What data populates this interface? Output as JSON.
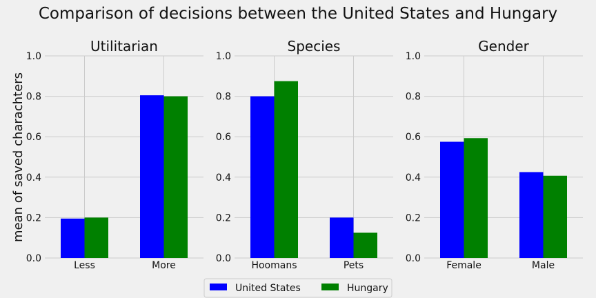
{
  "chart_data": {
    "type": "bar",
    "title": "Comparison of decisions between the United States and Hungary",
    "ylabel": "mean of saved charachters",
    "ylim": [
      0,
      1.0
    ],
    "yticks": [
      "0.0",
      "0.2",
      "0.4",
      "0.6",
      "0.8",
      "1.0"
    ],
    "grid": true,
    "legend_position": "bottom-center",
    "colors": {
      "United States": "#0000ff",
      "Hungary": "#008000",
      "background": "#f0f0f0",
      "grid": "#cbcbcb"
    },
    "legend": [
      "United States",
      "Hungary"
    ],
    "panels": [
      {
        "title": "Utilitarian",
        "categories": [
          "Less",
          "More"
        ],
        "series": [
          {
            "name": "United States",
            "values": [
              0.195,
              0.805
            ]
          },
          {
            "name": "Hungary",
            "values": [
              0.2,
              0.8
            ]
          }
        ]
      },
      {
        "title": "Species",
        "categories": [
          "Hoomans",
          "Pets"
        ],
        "series": [
          {
            "name": "United States",
            "values": [
              0.8,
              0.2
            ]
          },
          {
            "name": "Hungary",
            "values": [
              0.875,
              0.125
            ]
          }
        ]
      },
      {
        "title": "Gender",
        "categories": [
          "Female",
          "Male"
        ],
        "series": [
          {
            "name": "United States",
            "values": [
              0.575,
              0.425
            ]
          },
          {
            "name": "Hungary",
            "values": [
              0.593,
              0.407
            ]
          }
        ]
      }
    ]
  }
}
